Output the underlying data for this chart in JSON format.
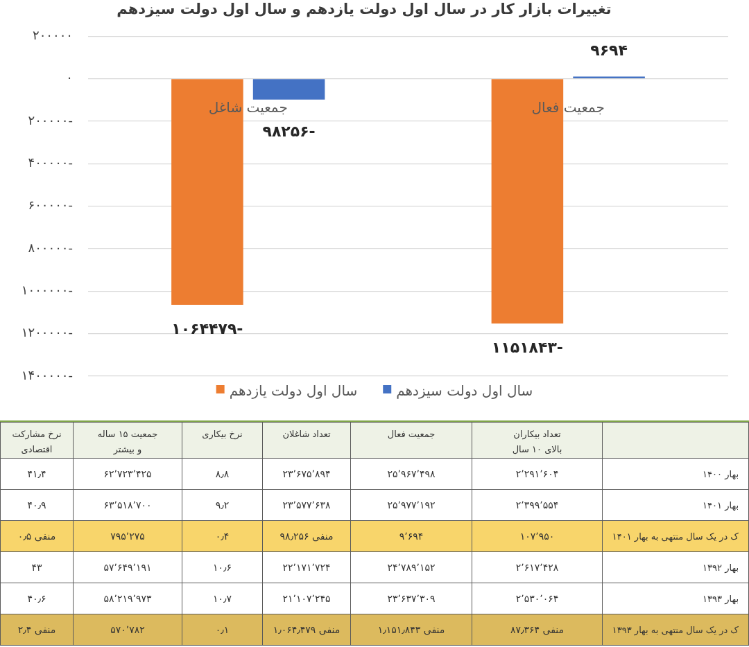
{
  "chart_data": [
    {
      "type": "bar",
      "title": "تغییرات بازار کار در سال اول دولت یازدهم و سال اول دولت سیزدهم",
      "categories": [
        "جمعیت شاغل",
        "جمعیت فعال"
      ],
      "series": [
        {
          "name": "سال اول دولت یازدهم",
          "color": "#ed7d31",
          "values": [
            -1064479,
            -1151843
          ],
          "value_labels": [
            "-۱۰۶۴۴۷۹",
            "-۱۱۵۱۸۴۳"
          ]
        },
        {
          "name": "سال اول دولت سیزدهم",
          "color": "#4472c4",
          "values": [
            -98256,
            9694
          ],
          "value_labels": [
            "-۹۸۲۵۶",
            "۹۶۹۴"
          ]
        }
      ],
      "ylim": [
        -1400000,
        200000
      ],
      "yticks": [
        {
          "value": 200000,
          "label": "۲۰۰۰۰۰"
        },
        {
          "value": 0,
          "label": "۰"
        },
        {
          "value": -200000,
          "label": "۲۰۰۰۰۰-"
        },
        {
          "value": -400000,
          "label": "۴۰۰۰۰۰-"
        },
        {
          "value": -600000,
          "label": "۶۰۰۰۰۰-"
        },
        {
          "value": -800000,
          "label": "۸۰۰۰۰۰-"
        },
        {
          "value": -1000000,
          "label": "۱۰۰۰۰۰۰-"
        },
        {
          "value": -1200000,
          "label": "۱۲۰۰۰۰۰-"
        },
        {
          "value": -1400000,
          "label": "۱۴۰۰۰۰۰-"
        }
      ],
      "grid": "y",
      "legend": "bottom"
    },
    {
      "type": "other",
      "categories": [
        "نرخ مشارکت\nاقتصادی",
        "جمعیت ۱۵ ساله\nو بیشتر",
        "نرخ بیکاری",
        "تعداد شاغلان",
        "جمعیت فعال",
        "تعداد بیکاران\nبالای ۱۰ سال"
      ],
      "y2_categories": [
        "بهار ۱۴۰۰",
        "بهار ۱۴۰۱",
        "ک در یک سال منتهی به بهار ۱۴۰۱",
        "بهار ۱۳۹۲",
        "بهار ۱۳۹۳",
        "ک در یک سال منتهی به بهار ۱۳۹۳"
      ],
      "cell_labels": [
        [
          "۴۱٫۴",
          "۶۲٬۷۲۳٬۴۲۵",
          "۸٫۸",
          "۲۳٬۶۷۵٬۸۹۴",
          "۲۵٬۹۶۷٬۴۹۸",
          "۲٬۲۹۱٬۶۰۴"
        ],
        [
          "۴۰٫۹",
          "۶۳٬۵۱۸٬۷۰۰",
          "۹٫۲",
          "۲۳٬۵۷۷٬۶۳۸",
          "۲۵٬۹۷۷٬۱۹۲",
          "۲٬۳۹۹٬۵۵۴"
        ],
        [
          "منفی ۰٫۵",
          "۷۹۵٬۲۷۵",
          "۰٫۴",
          "منفی ۹۸٫۲۵۶",
          "۹٬۶۹۴",
          "۱۰۷٬۹۵۰"
        ],
        [
          "۴۳",
          "۵۷٬۶۴۹٬۱۹۱",
          "۱۰٫۶",
          "۲۲٬۱۷۱٬۷۲۴",
          "۲۴٬۷۸۹٬۱۵۲",
          "۲٬۶۱۷٬۴۲۸"
        ],
        [
          "۴۰٫۶",
          "۵۸٬۲۱۹٬۹۷۳",
          "۱۰٫۷",
          "۲۱٬۱۰۷٬۲۴۵",
          "۲۳٬۶۳۷٬۳۰۹",
          "۲٬۵۳۰٬۰۶۴"
        ],
        [
          "منفی ۲٫۴",
          "۵۷۰٬۷۸۲",
          "۰٫۱",
          "منفی ۱٫۰۶۴٫۴۷۹",
          "منفی ۱٫۱۵۱٫۸۴۳",
          "منفی ۸۷٫۳۶۴"
        ]
      ]
    }
  ]
}
